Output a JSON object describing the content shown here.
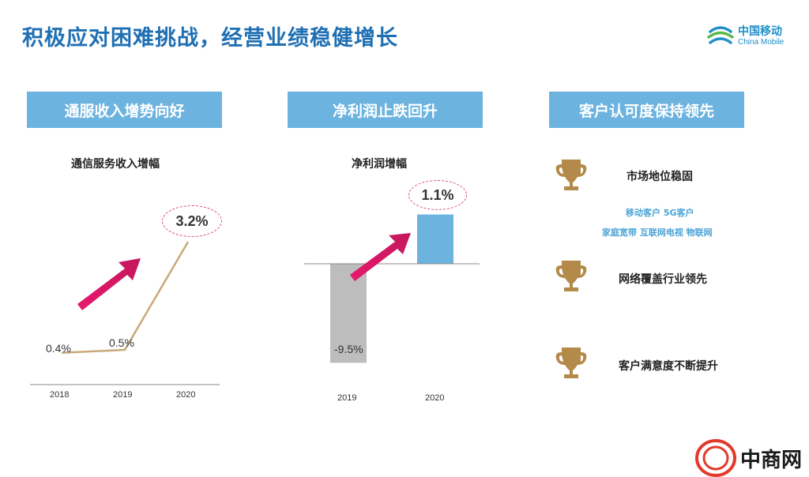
{
  "title": "积极应对困难挑战，经营业绩稳健增长",
  "logo": {
    "cn": "中国移动",
    "en": "China Mobile"
  },
  "sections": [
    {
      "header": "通服收入增势向好",
      "subtitle": "通信服务收入增幅"
    },
    {
      "header": "净利润止跌回升",
      "subtitle": "净利润增幅"
    },
    {
      "header": "客户认可度保持领先"
    }
  ],
  "chart_data": [
    {
      "type": "line",
      "title": "通信服务收入增幅",
      "x": [
        "2018",
        "2019",
        "2020"
      ],
      "values": [
        0.4,
        0.5,
        3.2
      ],
      "labels": [
        "0.4%",
        "0.5%",
        "3.2%"
      ],
      "ylim": [
        0,
        4
      ]
    },
    {
      "type": "bar",
      "title": "净利润增幅",
      "categories": [
        "2019",
        "2020"
      ],
      "values": [
        -9.5,
        1.1
      ],
      "labels": [
        "-9.5%",
        "1.1%"
      ],
      "colors": [
        "#bdbdbd",
        "#6cb3df"
      ]
    }
  ],
  "customer": {
    "items": [
      {
        "label": "市场地位稳固"
      },
      {
        "label": "网络覆盖行业领先"
      },
      {
        "label": "客户满意度不断提升"
      }
    ],
    "tags_line1": "移动客户   5G客户",
    "tags_line2": "家庭宽带  互联网电视  物联网"
  },
  "watermark": {
    "text": "中商网",
    "mark": "ZS"
  },
  "colors": {
    "accent": "#1f6fb3",
    "header_bg": "#6cb3df",
    "arrow": "#e8196e",
    "line": "#c8a97a",
    "trophy": "#b38a4a"
  }
}
